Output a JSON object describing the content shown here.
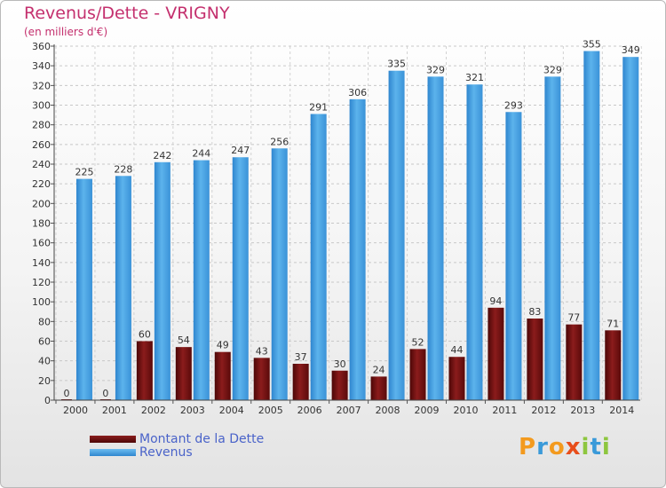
{
  "header": {
    "title": "Revenus/Dette - VRIGNY",
    "subtitle": "(en milliers d'€)"
  },
  "chart_data": {
    "type": "bar",
    "title": "Revenus/Dette - VRIGNY",
    "subtitle": "(en milliers d'€)",
    "xlabel": "",
    "ylabel": "",
    "ylim": [
      0,
      360
    ],
    "yticks": [
      0,
      20,
      40,
      60,
      80,
      100,
      120,
      140,
      160,
      180,
      200,
      220,
      240,
      260,
      280,
      300,
      320,
      340,
      360
    ],
    "grid": true,
    "legend_position": "bottom-left",
    "categories": [
      "2000",
      "2001",
      "2002",
      "2003",
      "2004",
      "2005",
      "2006",
      "2007",
      "2008",
      "2009",
      "2010",
      "2011",
      "2012",
      "2013",
      "2014"
    ],
    "series": [
      {
        "name": "Montant de la Dette",
        "color": "#7a1414",
        "values": [
          0,
          0,
          60,
          54,
          49,
          43,
          37,
          30,
          24,
          52,
          44,
          94,
          83,
          77,
          71
        ]
      },
      {
        "name": "Revenus",
        "color": "#4aa3e3",
        "values": [
          225,
          228,
          242,
          244,
          247,
          256,
          291,
          306,
          335,
          329,
          321,
          293,
          329,
          355,
          349
        ]
      }
    ]
  },
  "legend": {
    "items": [
      {
        "label": "Montant de la Dette",
        "color": "#6b0e0e"
      },
      {
        "label": "Revenus",
        "color": "#3b95de"
      }
    ]
  },
  "logo": {
    "letters": [
      "P",
      "r",
      "o",
      "x",
      "i",
      "t",
      "i"
    ],
    "colors": [
      "#f39a1e",
      "#3a9ad9",
      "#f39a1e",
      "#e84e1b",
      "#8dc63f",
      "#3a9ad9",
      "#8dc63f"
    ]
  }
}
